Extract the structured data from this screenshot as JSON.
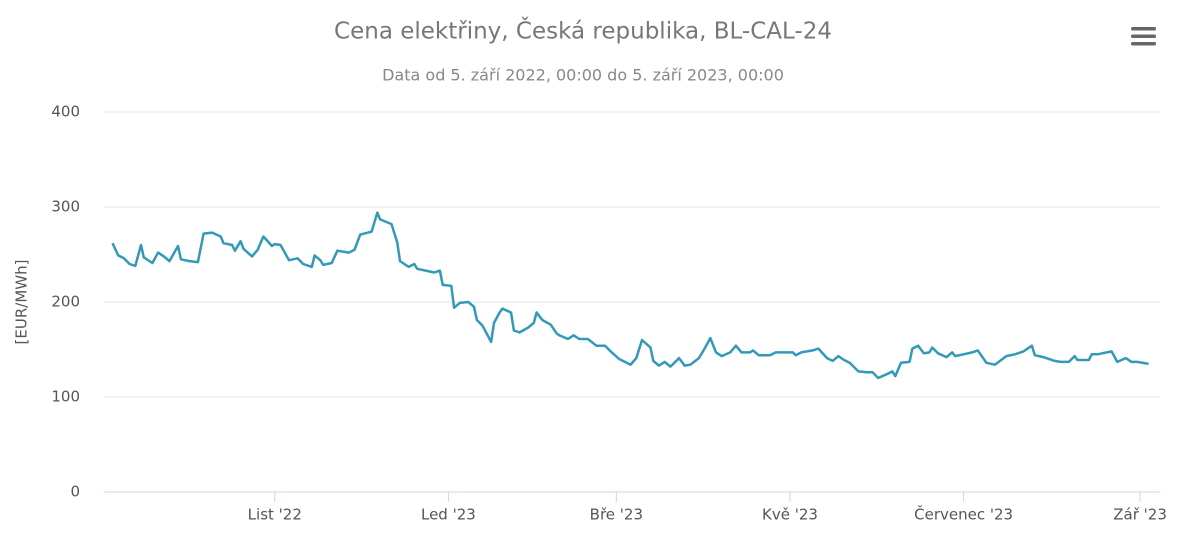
{
  "chart_data": {
    "type": "line",
    "title": "Cena elektřiny, Česká republika, BL-CAL-24",
    "subtitle": "Data od 5. září 2022, 00:00 do 5. září 2023, 00:00",
    "y_label": "[EUR/MWh]",
    "xlim": [
      -3,
      368
    ],
    "xticks": [
      {
        "value": 57,
        "label": "List '22"
      },
      {
        "value": 118,
        "label": "Led '23"
      },
      {
        "value": 177,
        "label": "Bře '23"
      },
      {
        "value": 238,
        "label": "Kvě '23"
      },
      {
        "value": 299,
        "label": "Červenec '23"
      },
      {
        "value": 361,
        "label": "Zář '23"
      }
    ],
    "ylim": [
      0,
      400
    ],
    "yticks": [
      0,
      100,
      200,
      300,
      400
    ],
    "grid": true,
    "x": [
      0,
      2,
      4,
      6,
      8,
      10,
      11,
      14,
      16,
      18,
      20,
      23,
      24,
      27,
      30,
      32,
      35,
      38,
      39,
      42,
      43,
      45,
      46,
      49,
      51,
      53,
      56,
      57,
      59,
      62,
      65,
      67,
      70,
      71,
      73,
      74,
      77,
      79,
      83,
      85,
      87,
      91,
      93,
      94,
      98,
      100,
      101,
      104,
      106,
      107,
      110,
      113,
      115,
      116,
      119,
      120,
      122,
      125,
      127,
      128,
      130,
      133,
      134,
      136,
      137,
      140,
      141,
      143,
      146,
      148,
      149,
      151,
      154,
      156,
      157,
      160,
      162,
      164,
      167,
      170,
      173,
      175,
      178,
      182,
      184,
      186,
      189,
      190,
      192,
      194,
      196,
      197,
      199,
      201,
      203,
      206,
      208,
      210,
      212,
      214,
      217,
      219,
      221,
      224,
      225,
      227,
      231,
      233,
      235,
      239,
      240,
      242,
      246,
      248,
      251,
      253,
      255,
      257,
      259,
      262,
      265,
      267,
      269,
      272,
      274,
      275,
      277,
      280,
      281,
      283,
      285,
      287,
      288,
      290,
      293,
      295,
      296,
      299,
      302,
      304,
      307,
      310,
      314,
      317,
      320,
      323,
      324,
      327,
      331,
      333,
      336,
      338,
      339,
      343,
      344,
      346,
      351,
      353,
      356,
      358,
      360,
      364
    ],
    "series": [
      {
        "name": "BL-CAL-24",
        "color": "#3399b8",
        "values": [
          262,
          249,
          246,
          240,
          238,
          260,
          247,
          241,
          252,
          248,
          243,
          259,
          245,
          243,
          242,
          272,
          273,
          269,
          262,
          260,
          254,
          264,
          256,
          248,
          255,
          269,
          259,
          261,
          260,
          244,
          246,
          240,
          237,
          249,
          244,
          239,
          241,
          254,
          252,
          255,
          271,
          274,
          294,
          287,
          282,
          263,
          243,
          237,
          240,
          235,
          233,
          231,
          233,
          218,
          217,
          194,
          199,
          200,
          195,
          181,
          175,
          158,
          178,
          189,
          193,
          189,
          170,
          168,
          173,
          178,
          189,
          181,
          176,
          167,
          165,
          161,
          165,
          161,
          161,
          154,
          154,
          148,
          140,
          134,
          141,
          160,
          152,
          138,
          133,
          137,
          132,
          135,
          141,
          133,
          134,
          141,
          151,
          162,
          147,
          143,
          147,
          154,
          147,
          147,
          149,
          144,
          144,
          147,
          147,
          147,
          144,
          147,
          149,
          151,
          141,
          138,
          143,
          139,
          136,
          127,
          126,
          126,
          120,
          124,
          127,
          122,
          136,
          137,
          151,
          154,
          146,
          147,
          152,
          146,
          142,
          147,
          143,
          145,
          147,
          149,
          136,
          134,
          143,
          145,
          148,
          154,
          144,
          142,
          138,
          137,
          137,
          143,
          139,
          139,
          145,
          145,
          148,
          137,
          141,
          137,
          137,
          135
        ]
      }
    ]
  }
}
